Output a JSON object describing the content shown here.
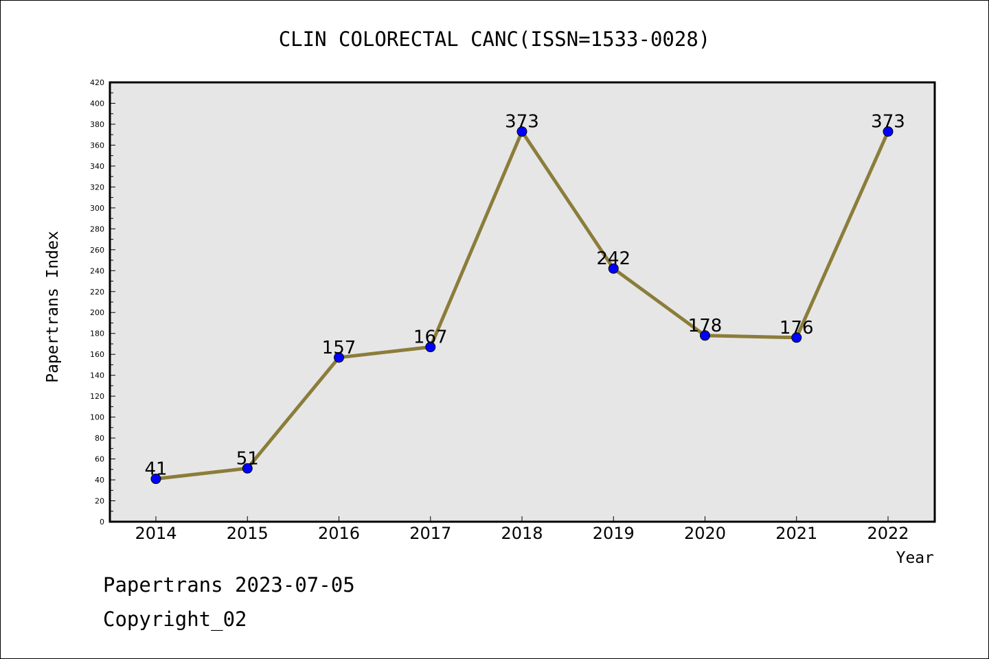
{
  "chart_data": {
    "type": "line",
    "title": "CLIN COLORECTAL CANC(ISSN=1533-0028)",
    "xlabel": "Year",
    "ylabel": "Papertrans Index",
    "categories": [
      "2014",
      "2015",
      "2016",
      "2017",
      "2018",
      "2019",
      "2020",
      "2021",
      "2022"
    ],
    "series": [
      {
        "values": [
          41,
          51,
          157,
          167,
          373,
          242,
          178,
          176,
          373
        ]
      }
    ],
    "data_labels": [
      "41",
      "51",
      "157",
      "167",
      "373",
      "242",
      "178",
      "176",
      "373"
    ],
    "ylim": [
      0,
      420
    ],
    "yticks": [
      0,
      20,
      40,
      60,
      80,
      100,
      120,
      140,
      160,
      180,
      200,
      220,
      240,
      260,
      280,
      300,
      320,
      340,
      360,
      380,
      400,
      420
    ],
    "grid": false,
    "colors": {
      "line": "#8b7d3a",
      "marker": "#0000ff",
      "plot_bg": "#e6e6e6"
    }
  },
  "footer": {
    "line1": "Papertrans 2023-07-05",
    "line2": "Copyright_02"
  }
}
